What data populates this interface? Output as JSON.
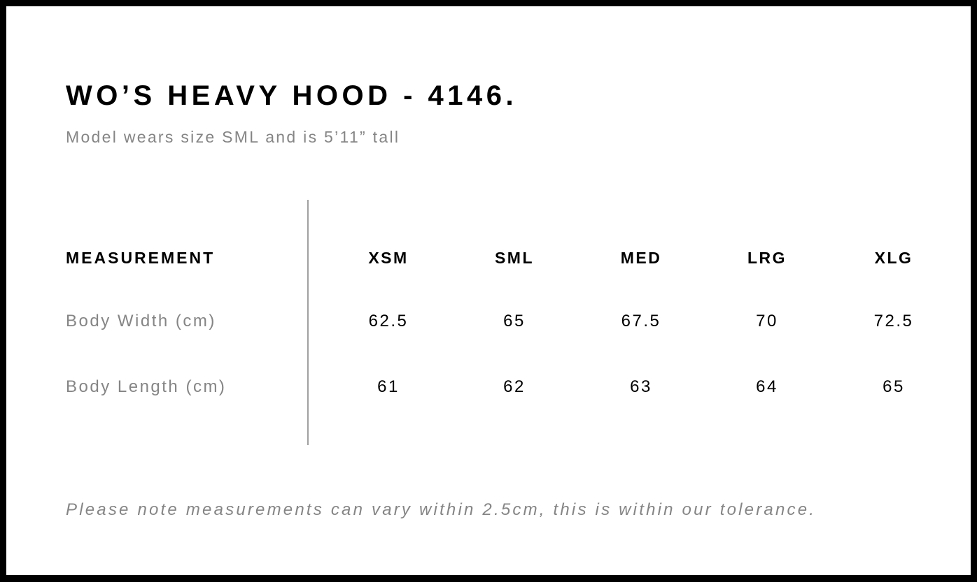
{
  "title": "WO’S HEAVY HOOD - 4146.",
  "subtitle": "Model wears size SML and is 5’11” tall",
  "table": {
    "header_label": "MEASUREMENT",
    "sizes": [
      "XSM",
      "SML",
      "MED",
      "LRG",
      "XLG"
    ],
    "rows": [
      {
        "label": "Body Width (cm)",
        "values": [
          "62.5",
          "65",
          "67.5",
          "70",
          "72.5"
        ]
      },
      {
        "label": "Body Length (cm)",
        "values": [
          "61",
          "62",
          "63",
          "64",
          "65"
        ]
      }
    ]
  },
  "note": "Please note measurements can vary within 2.5cm, this is within our tolerance."
}
